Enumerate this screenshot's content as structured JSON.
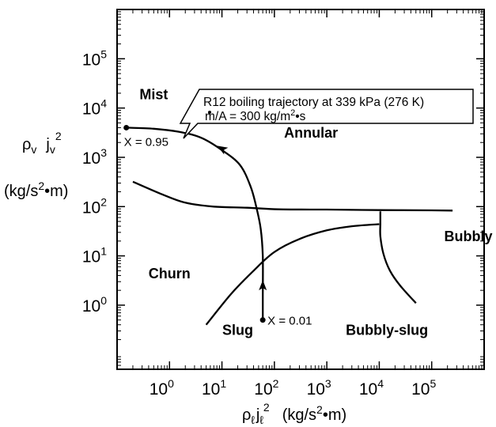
{
  "chart_data": {
    "type": "line",
    "xscale": "log",
    "yscale": "log",
    "xlim": [
      0.1,
      1000000
    ],
    "ylim": [
      0.05,
      1000000
    ],
    "grid": false,
    "xlabel": {
      "rho": "ρ",
      "rho_sub": "ℓ",
      "j": "j",
      "j_sub": "ℓ",
      "sq": "2",
      "unit_open": "(kg/s",
      "unit_sq": "2",
      "unit_close": "•m)"
    },
    "ylabel": {
      "rho": "ρ",
      "rho_sub": "v",
      "j": "j",
      "j_sub": "v",
      "sq": "2",
      "unit_open": "(kg/s",
      "unit_sq": "2",
      "unit_close": "•m)"
    },
    "x_ticks": [
      {
        "value": 1,
        "base": "10",
        "exp": "0"
      },
      {
        "value": 10,
        "base": "10",
        "exp": "1"
      },
      {
        "value": 100,
        "base": "10",
        "exp": "2"
      },
      {
        "value": 1000,
        "base": "10",
        "exp": "3"
      },
      {
        "value": 10000,
        "base": "10",
        "exp": "4"
      },
      {
        "value": 100000,
        "base": "10",
        "exp": "5"
      }
    ],
    "y_ticks": [
      {
        "value": 1,
        "base": "10",
        "exp": "0"
      },
      {
        "value": 10,
        "base": "10",
        "exp": "1"
      },
      {
        "value": 100,
        "base": "10",
        "exp": "2"
      },
      {
        "value": 1000,
        "base": "10",
        "exp": "3"
      },
      {
        "value": 10000,
        "base": "10",
        "exp": "4"
      },
      {
        "value": 100000,
        "base": "10",
        "exp": "5"
      }
    ],
    "regions": [
      {
        "label": "Mist",
        "x": 0.5,
        "y": 15000
      },
      {
        "label": "Annular",
        "x": 500,
        "y": 2500
      },
      {
        "label": "Churn",
        "x": 1.0,
        "y": 3.5
      },
      {
        "label": "Slug",
        "x": 20,
        "y": 0.25
      },
      {
        "label": "Bubbly-slug",
        "x": 14000,
        "y": 0.25
      },
      {
        "label": "Bubbly",
        "x": 500000,
        "y": 20
      }
    ],
    "boundaries": [
      {
        "points": [
          [
            0.2,
            320
          ],
          [
            0.7,
            180
          ],
          [
            2,
            120
          ],
          [
            7,
            100
          ],
          [
            30,
            95
          ],
          [
            120,
            88
          ],
          [
            1000,
            87
          ],
          [
            10000,
            85
          ],
          [
            100000,
            84
          ],
          [
            250000,
            83
          ]
        ]
      },
      {
        "points": [
          [
            5,
            0.4
          ],
          [
            15,
            1.7
          ],
          [
            40,
            5
          ],
          [
            100,
            12
          ],
          [
            300,
            22
          ],
          [
            1000,
            33
          ],
          [
            3000,
            40
          ],
          [
            10000,
            44
          ]
        ]
      },
      {
        "points": [
          [
            10500,
            44
          ],
          [
            10500,
            25
          ],
          [
            12000,
            11
          ],
          [
            16000,
            5
          ],
          [
            25000,
            2.5
          ],
          [
            50000,
            1.1
          ]
        ]
      },
      {
        "points": [
          [
            10500,
            80
          ],
          [
            10500,
            44
          ]
        ]
      }
    ],
    "trajectory": {
      "label_line1": "R12 boiling trajectory at 339 kPa (276 K)",
      "label_line2_prefix": "m/A = 300 kg/m",
      "label_line2_sup": "2",
      "label_line2_suffix": "•s",
      "points": [
        [
          60,
          0.5
        ],
        [
          60,
          1.5
        ],
        [
          60,
          10
        ],
        [
          55,
          35
        ],
        [
          45,
          100
        ],
        [
          35,
          260
        ],
        [
          22,
          700
        ],
        [
          10,
          1400
        ],
        [
          4,
          2500
        ],
        [
          1.5,
          3300
        ],
        [
          0.5,
          3800
        ],
        [
          0.15,
          4000
        ]
      ],
      "arrows": [
        {
          "x": 60,
          "y": 2.5
        },
        {
          "x": 10,
          "y": 1500
        }
      ],
      "start": {
        "label": "X = 0.01",
        "x": 60,
        "y": 0.5
      },
      "end": {
        "label": "X = 0.95",
        "x": 0.15,
        "y": 4000
      }
    }
  }
}
